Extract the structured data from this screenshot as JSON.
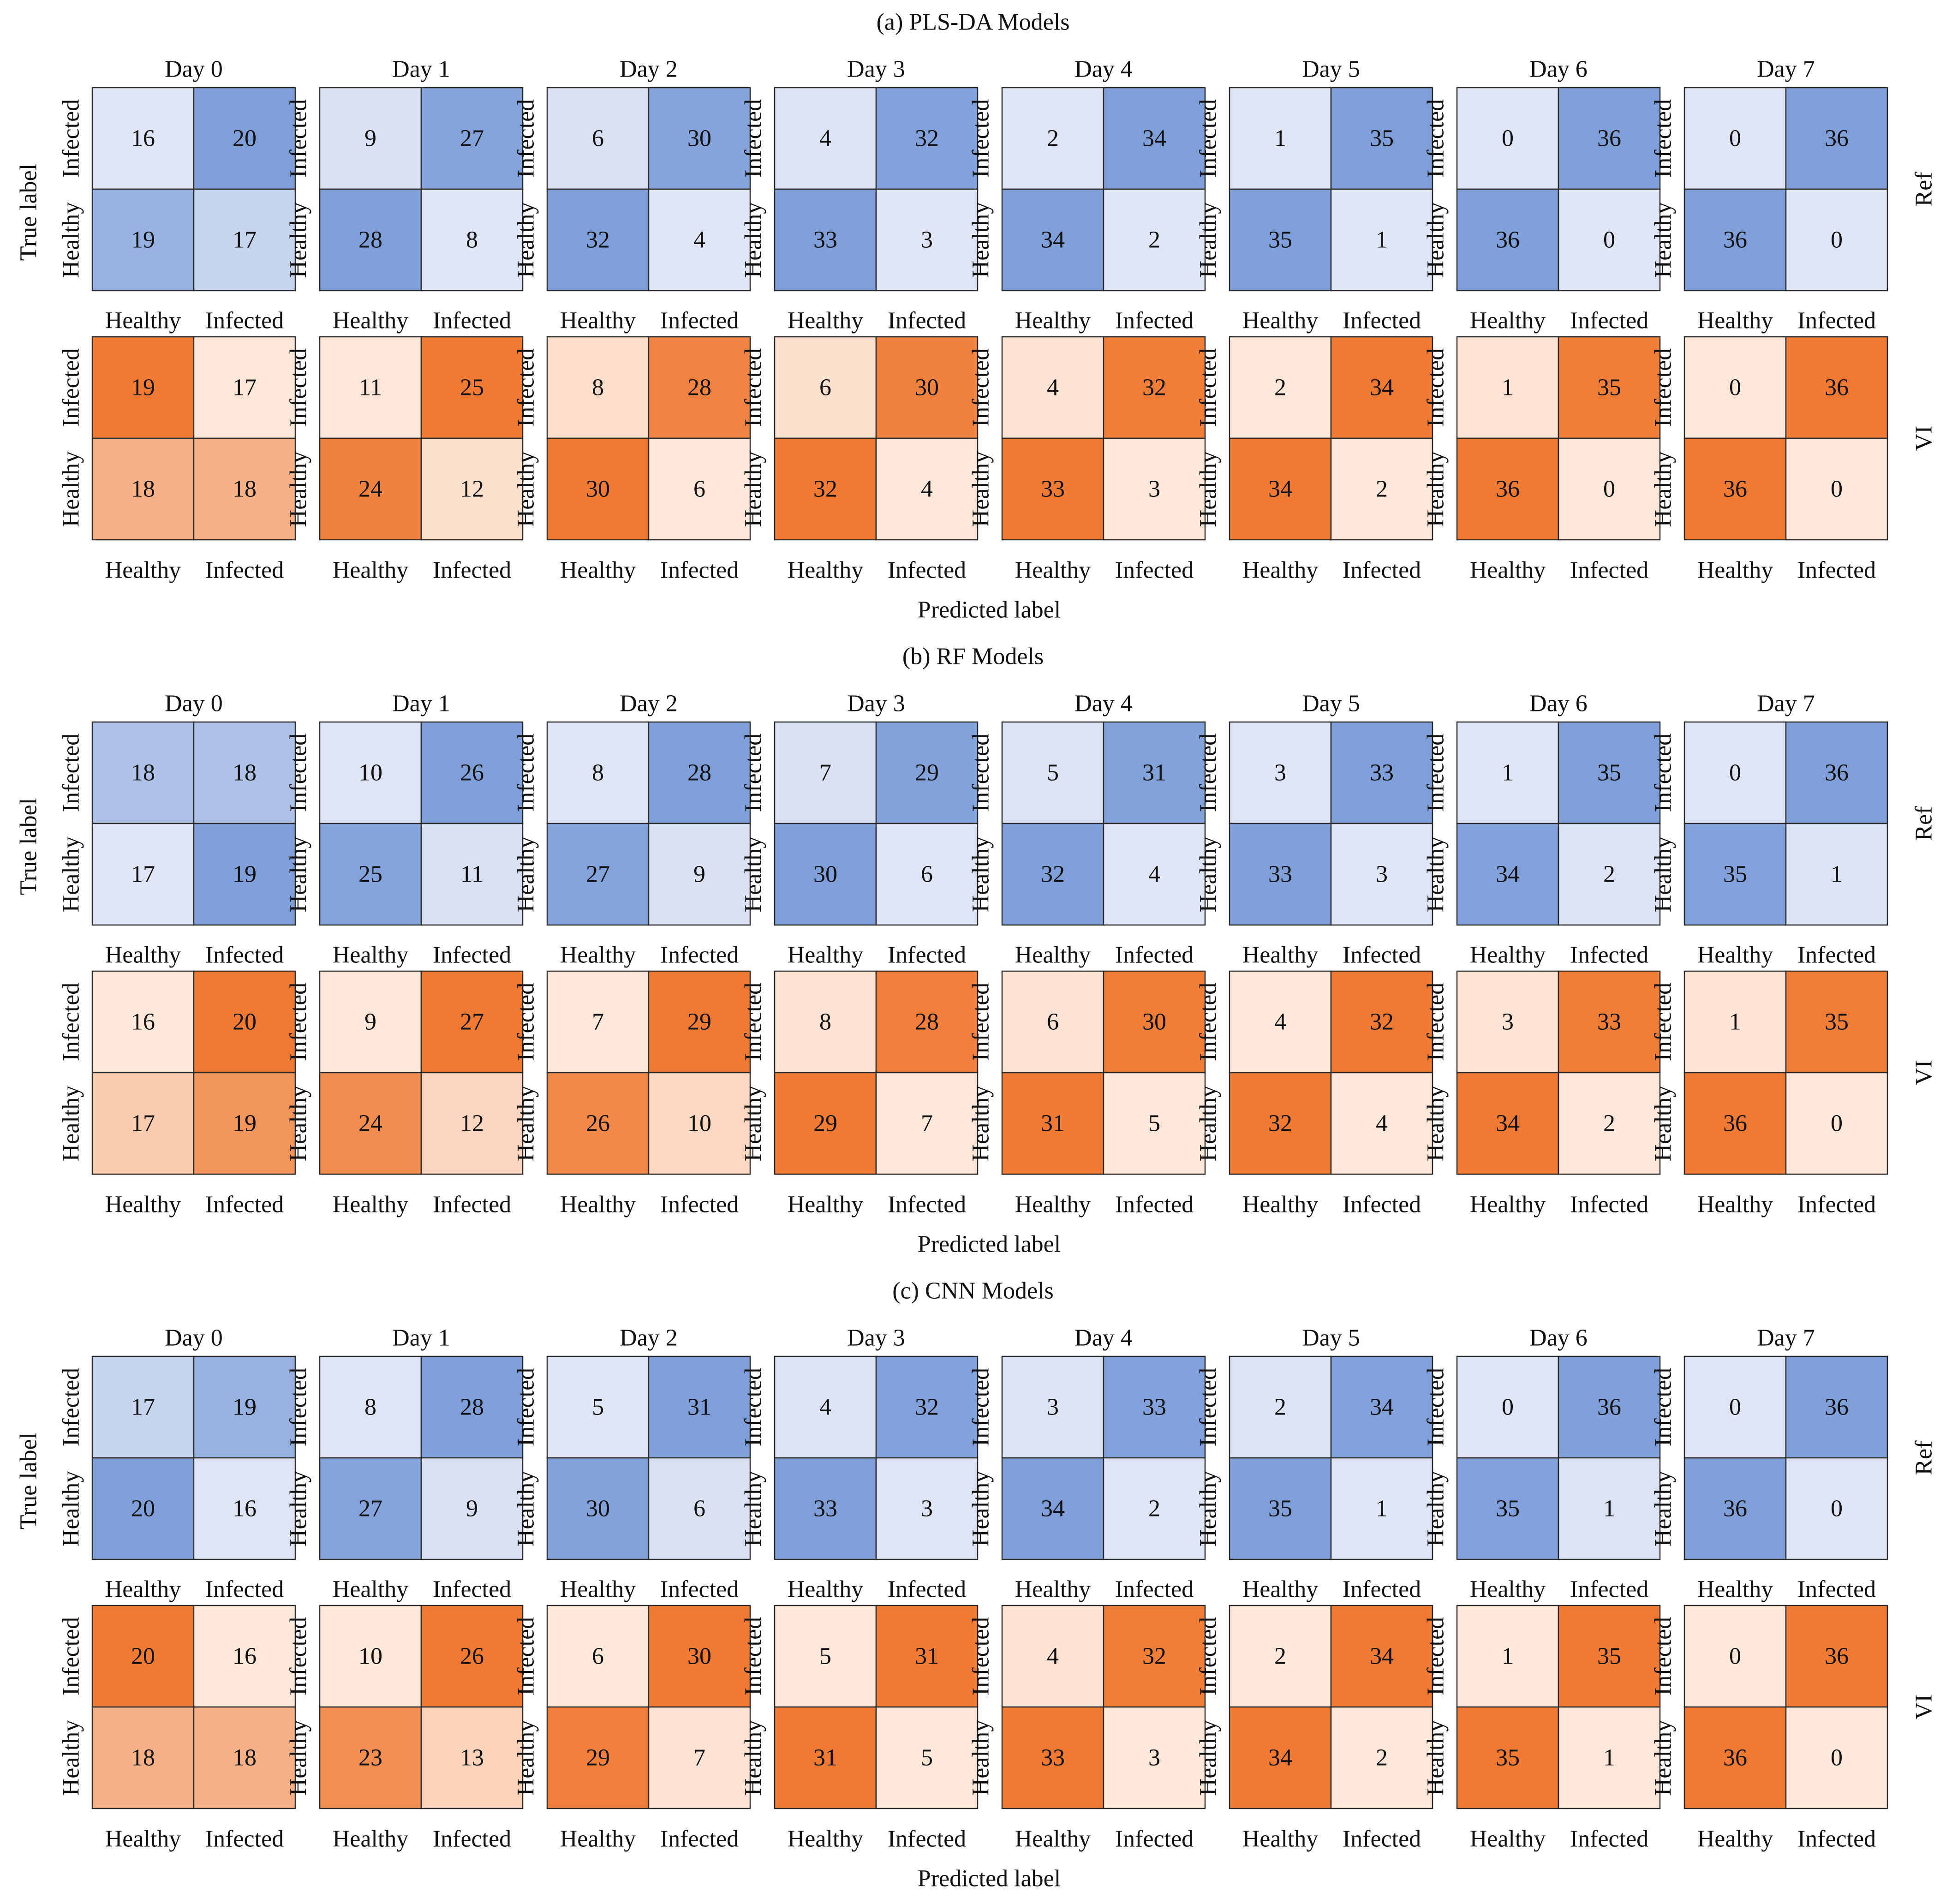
{
  "colors": {
    "ref": "#7f9fd9",
    "vi": "#ee7a33",
    "cell_border": "#2b2b2b",
    "text": "#111111"
  },
  "chart_data": {
    "type": "heatmap",
    "days": [
      "Day 0",
      "Day 1",
      "Day 2",
      "Day 3",
      "Day 4",
      "Day 5",
      "Day 6",
      "Day 7"
    ],
    "row_labels": [
      "Infected",
      "Healthy"
    ],
    "col_labels": [
      "Healthy",
      "Infected"
    ],
    "xlabel": "Predicted label",
    "ylabel": "True label",
    "panels": [
      {
        "title": "(a) PLS-DA Models",
        "rows": [
          {
            "name": "Ref",
            "matrices": [
              [
                [
                  16,
                  20
                ],
                [
                  19,
                  17
                ]
              ],
              [
                [
                  9,
                  27
                ],
                [
                  28,
                  8
                ]
              ],
              [
                [
                  6,
                  30
                ],
                [
                  32,
                  4
                ]
              ],
              [
                [
                  4,
                  32
                ],
                [
                  33,
                  3
                ]
              ],
              [
                [
                  2,
                  34
                ],
                [
                  34,
                  2
                ]
              ],
              [
                [
                  1,
                  35
                ],
                [
                  35,
                  1
                ]
              ],
              [
                [
                  0,
                  36
                ],
                [
                  36,
                  0
                ]
              ],
              [
                [
                  0,
                  36
                ],
                [
                  36,
                  0
                ]
              ]
            ]
          },
          {
            "name": "VI",
            "matrices": [
              [
                [
                  19,
                  17
                ],
                [
                  18,
                  18
                ]
              ],
              [
                [
                  11,
                  25
                ],
                [
                  24,
                  12
                ]
              ],
              [
                [
                  8,
                  28
                ],
                [
                  30,
                  6
                ]
              ],
              [
                [
                  6,
                  30
                ],
                [
                  32,
                  4
                ]
              ],
              [
                [
                  4,
                  32
                ],
                [
                  33,
                  3
                ]
              ],
              [
                [
                  2,
                  34
                ],
                [
                  34,
                  2
                ]
              ],
              [
                [
                  1,
                  35
                ],
                [
                  36,
                  0
                ]
              ],
              [
                [
                  0,
                  36
                ],
                [
                  36,
                  0
                ]
              ]
            ]
          }
        ]
      },
      {
        "title": "(b) RF Models",
        "rows": [
          {
            "name": "Ref",
            "matrices": [
              [
                [
                  18,
                  18
                ],
                [
                  17,
                  19
                ]
              ],
              [
                [
                  10,
                  26
                ],
                [
                  25,
                  11
                ]
              ],
              [
                [
                  8,
                  28
                ],
                [
                  27,
                  9
                ]
              ],
              [
                [
                  7,
                  29
                ],
                [
                  30,
                  6
                ]
              ],
              [
                [
                  5,
                  31
                ],
                [
                  32,
                  4
                ]
              ],
              [
                [
                  3,
                  33
                ],
                [
                  33,
                  3
                ]
              ],
              [
                [
                  1,
                  35
                ],
                [
                  34,
                  2
                ]
              ],
              [
                [
                  0,
                  36
                ],
                [
                  35,
                  1
                ]
              ]
            ]
          },
          {
            "name": "VI",
            "matrices": [
              [
                [
                  16,
                  20
                ],
                [
                  17,
                  19
                ]
              ],
              [
                [
                  9,
                  27
                ],
                [
                  24,
                  12
                ]
              ],
              [
                [
                  7,
                  29
                ],
                [
                  26,
                  10
                ]
              ],
              [
                [
                  8,
                  28
                ],
                [
                  29,
                  7
                ]
              ],
              [
                [
                  6,
                  30
                ],
                [
                  31,
                  5
                ]
              ],
              [
                [
                  4,
                  32
                ],
                [
                  32,
                  4
                ]
              ],
              [
                [
                  3,
                  33
                ],
                [
                  34,
                  2
                ]
              ],
              [
                [
                  1,
                  35
                ],
                [
                  36,
                  0
                ]
              ]
            ]
          }
        ]
      },
      {
        "title": "(c) CNN Models",
        "rows": [
          {
            "name": "Ref",
            "matrices": [
              [
                [
                  17,
                  19
                ],
                [
                  20,
                  16
                ]
              ],
              [
                [
                  8,
                  28
                ],
                [
                  27,
                  9
                ]
              ],
              [
                [
                  5,
                  31
                ],
                [
                  30,
                  6
                ]
              ],
              [
                [
                  4,
                  32
                ],
                [
                  33,
                  3
                ]
              ],
              [
                [
                  3,
                  33
                ],
                [
                  34,
                  2
                ]
              ],
              [
                [
                  2,
                  34
                ],
                [
                  35,
                  1
                ]
              ],
              [
                [
                  0,
                  36
                ],
                [
                  35,
                  1
                ]
              ],
              [
                [
                  0,
                  36
                ],
                [
                  36,
                  0
                ]
              ]
            ]
          },
          {
            "name": "VI",
            "matrices": [
              [
                [
                  20,
                  16
                ],
                [
                  18,
                  18
                ]
              ],
              [
                [
                  10,
                  26
                ],
                [
                  23,
                  13
                ]
              ],
              [
                [
                  6,
                  30
                ],
                [
                  29,
                  7
                ]
              ],
              [
                [
                  5,
                  31
                ],
                [
                  31,
                  5
                ]
              ],
              [
                [
                  4,
                  32
                ],
                [
                  33,
                  3
                ]
              ],
              [
                [
                  2,
                  34
                ],
                [
                  34,
                  2
                ]
              ],
              [
                [
                  1,
                  35
                ],
                [
                  35,
                  1
                ]
              ],
              [
                [
                  0,
                  36
                ],
                [
                  36,
                  0
                ]
              ]
            ]
          }
        ]
      }
    ]
  }
}
